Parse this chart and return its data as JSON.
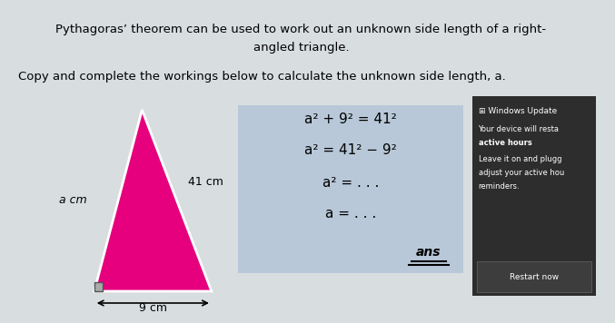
{
  "bg_color": "#d8dde0",
  "title_line1": "Pythagoras’ theorem can be used to work out an unknown side length of a right-",
  "title_line2": "angled triangle.",
  "subtitle": "Copy and complete the workings below to calculate the unknown side length, a.",
  "triangle_fill": "#e6007e",
  "triangle_edge": "white",
  "label_a": "a cm",
  "label_41": "41 cm",
  "label_9": "9 cm",
  "math_box_color": "#b8c8d8",
  "math_lines": [
    "a² + 9² = 41²",
    "a² = 41² − 9²",
    "a² = . . .",
    "a = . . ."
  ],
  "ans_label": "ans",
  "wu_bg": "#2d2d2d",
  "wu_title": "⊞ Windows Update",
  "wu_lines": [
    "Your device will resta",
    "active hours",
    "Leave it on and plugg",
    "adjust your active hou",
    "reminders."
  ],
  "wu_bold_line": "active hours",
  "wu_button": "Restart now",
  "wu_button_color": "#3d3d3d"
}
